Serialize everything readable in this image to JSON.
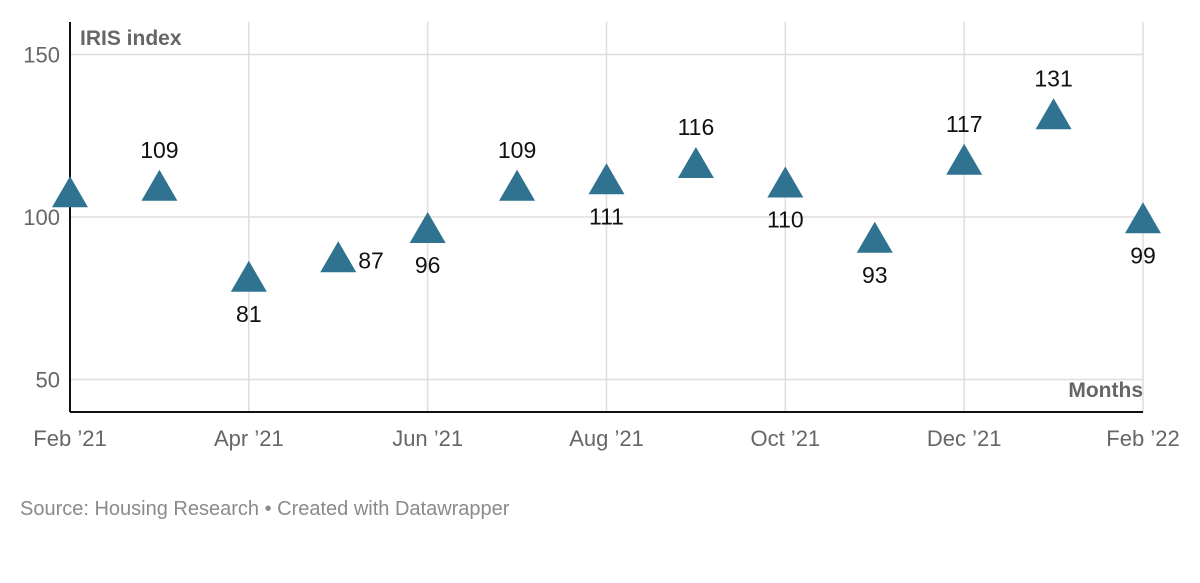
{
  "chart_data": {
    "type": "scatter",
    "marker": "triangle",
    "ylabel": "IRIS index",
    "xlabel": "Months",
    "x": [
      "Feb '21",
      "Mar '21",
      "Apr '21",
      "May '21",
      "Jun '21",
      "Jul '21",
      "Aug '21",
      "Sep '21",
      "Oct '21",
      "Nov '21",
      "Dec '21",
      "Jan '22",
      "Feb '22"
    ],
    "values": [
      107,
      109,
      81,
      87,
      96,
      109,
      111,
      116,
      110,
      93,
      117,
      131,
      99
    ],
    "data_labels": [
      "",
      "109",
      "81",
      "87",
      "96",
      "109",
      "111",
      "116",
      "110",
      "93",
      "117",
      "131",
      "99"
    ],
    "label_positions": [
      "none",
      "above",
      "below",
      "right",
      "below",
      "above",
      "below",
      "above",
      "below",
      "below",
      "above",
      "above",
      "below"
    ],
    "xticks": [
      "Feb ’21",
      "Apr ’21",
      "Jun ’21",
      "Aug ’21",
      "Oct ’21",
      "Dec ’21",
      "Feb ’22"
    ],
    "yticks": [
      "50",
      "100",
      "150"
    ],
    "ylim": [
      40,
      160
    ],
    "grid": true,
    "colors": {
      "marker": "#2f7390",
      "grid": "#dedede",
      "axis": "#111111",
      "tick_text": "#666666",
      "label_text": "#111111"
    }
  },
  "footer": {
    "source": "Source: Housing Research • Created with Datawrapper"
  }
}
